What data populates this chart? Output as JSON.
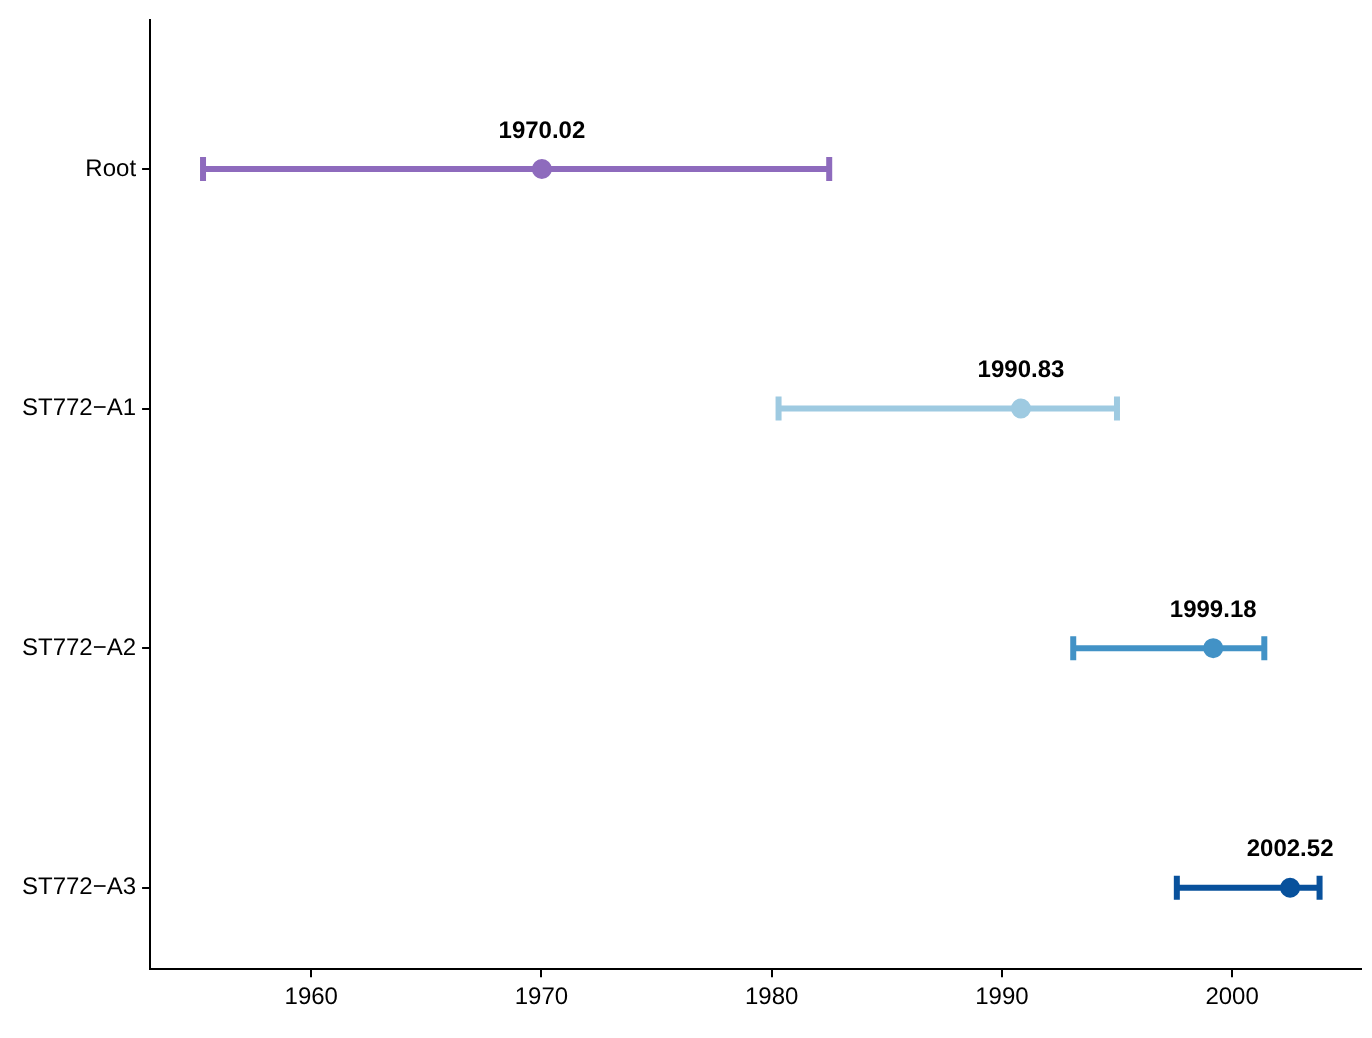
{
  "chart_data": {
    "type": "scatter",
    "orientation": "horizontal",
    "categories": [
      "Root",
      "ST772−A1",
      "ST772−A2",
      "ST772−A3"
    ],
    "values": [
      1970.02,
      1990.83,
      1999.18,
      2002.52
    ],
    "errors": [
      [
        1955.3,
        1982.5
      ],
      [
        1980.3,
        1995.0
      ],
      [
        1993.1,
        2001.4
      ],
      [
        1997.6,
        2003.8
      ]
    ],
    "colors": [
      "#8e6bbd",
      "#9ecae1",
      "#4292c6",
      "#08519c"
    ],
    "xlim": [
      1953,
      2005.6
    ],
    "xticks": [
      1960,
      1970,
      1980,
      1990,
      2000
    ],
    "data_labels": true,
    "grid": false,
    "legend": false,
    "marker": "circle"
  }
}
